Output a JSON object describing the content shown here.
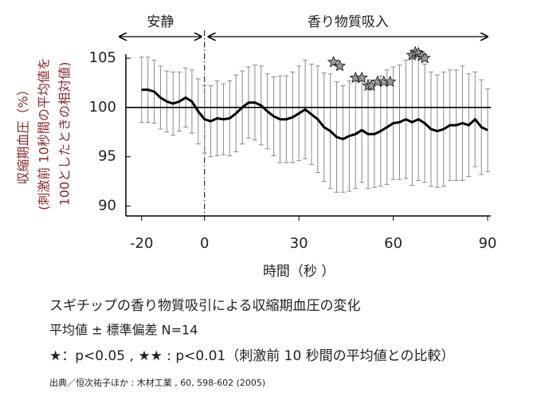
{
  "chart_data": {
    "type": "errorline",
    "y_label_lines": [
      "収縮期血圧（%）",
      "(刺激前 10秒間の平均値を",
      "100としたときの相対値)"
    ],
    "x_label": "時間（秒 ）",
    "periods": [
      {
        "label": "安静",
        "start": -27,
        "end": 0
      },
      {
        "label": "香り物質吸入",
        "start": 0,
        "end": 90
      }
    ],
    "x": [
      -20,
      -18,
      -16,
      -14,
      -12,
      -10,
      -8,
      -6,
      -4,
      -2,
      0,
      2,
      4,
      6,
      8,
      10,
      12,
      14,
      16,
      18,
      20,
      22,
      24,
      26,
      28,
      30,
      32,
      34,
      36,
      38,
      40,
      42,
      44,
      46,
      48,
      50,
      52,
      54,
      56,
      58,
      60,
      62,
      64,
      66,
      68,
      70,
      72,
      74,
      76,
      78,
      80,
      82,
      84,
      86,
      88,
      90
    ],
    "values": [
      101.8,
      101.8,
      101.6,
      101.0,
      100.6,
      100.4,
      100.6,
      101.0,
      100.6,
      99.6,
      98.8,
      98.6,
      98.9,
      98.8,
      98.9,
      99.4,
      100.0,
      100.5,
      100.5,
      100.2,
      99.6,
      99.1,
      98.8,
      98.8,
      99.0,
      99.4,
      99.8,
      99.3,
      98.8,
      98.0,
      97.6,
      97.0,
      96.8,
      97.1,
      97.3,
      97.7,
      97.3,
      97.3,
      97.6,
      98.0,
      98.4,
      98.5,
      98.8,
      98.5,
      98.8,
      98.4,
      97.8,
      97.6,
      97.8,
      98.2,
      98.2,
      98.4,
      98.2,
      98.8,
      98.0,
      97.7
    ],
    "errors": [
      3.3,
      3.3,
      3.2,
      3.2,
      3.1,
      3.2,
      3.0,
      3.0,
      3.2,
      3.3,
      3.4,
      3.6,
      3.8,
      3.6,
      3.8,
      3.9,
      3.7,
      3.6,
      3.8,
      4.0,
      3.8,
      4.0,
      4.4,
      4.4,
      4.6,
      4.8,
      5.0,
      5.1,
      5.4,
      5.5,
      5.8,
      5.6,
      5.4,
      5.6,
      5.5,
      5.3,
      5.5,
      5.4,
      5.6,
      5.8,
      5.7,
      5.8,
      6.0,
      6.4,
      6.2,
      6.0,
      5.8,
      5.7,
      5.8,
      5.6,
      5.6,
      5.8,
      5.2,
      4.8,
      4.8,
      4.2
    ],
    "significance": {
      "x": [
        41,
        43,
        48,
        50,
        52,
        53,
        55,
        57,
        59,
        66,
        67,
        68,
        69,
        70
      ],
      "y": [
        104.6,
        104.2,
        103.0,
        103.0,
        102.2,
        102.2,
        102.6,
        102.6,
        102.6,
        105.3,
        105.6,
        105.5,
        105.2,
        105.0
      ]
    },
    "reference_line": 100,
    "event_line": 0,
    "xlim": [
      -25,
      91
    ],
    "ylim": [
      89,
      105.4
    ],
    "xticks": [
      -20,
      0,
      30,
      60,
      90
    ],
    "yticks": [
      90,
      95,
      100,
      105
    ],
    "line_color": "#000000",
    "error_color": "#8a8a8a",
    "star_color": "#9a9a9a",
    "label_color": "#8b2a2a",
    "notes": [
      "スギチップの香り物質吸引による収縮期血圧の変化",
      "平均値 ± 標準偏差 N=14",
      "★：p<0.05 , ★★ : p<0.01（刺激前 10 秒間の平均値との比較）",
      "出典／恒次祐子ほか : 木材工業 , 60, 598-602 (2005)"
    ]
  }
}
